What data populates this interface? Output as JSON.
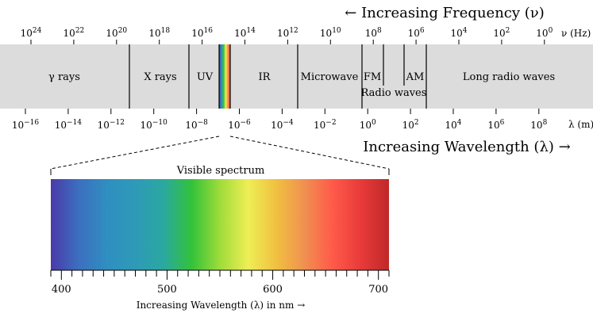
{
  "frequency_header": {
    "arrow": "←",
    "text": "Increasing Frequency (ν)"
  },
  "frequency_axis": {
    "unit": "ν (Hz)",
    "ticks": [
      {
        "base": "10",
        "exp": "24"
      },
      {
        "base": "10",
        "exp": "22"
      },
      {
        "base": "10",
        "exp": "20"
      },
      {
        "base": "10",
        "exp": "18"
      },
      {
        "base": "10",
        "exp": "16"
      },
      {
        "base": "10",
        "exp": "14"
      },
      {
        "base": "10",
        "exp": "12"
      },
      {
        "base": "10",
        "exp": "10"
      },
      {
        "base": "10",
        "exp": "8"
      },
      {
        "base": "10",
        "exp": "6"
      },
      {
        "base": "10",
        "exp": "4"
      },
      {
        "base": "10",
        "exp": "2"
      },
      {
        "base": "10",
        "exp": "0"
      }
    ]
  },
  "bands": {
    "gamma": "γ rays",
    "xray": "X rays",
    "uv": "UV",
    "ir": "IR",
    "microwave": "Microwave",
    "fm": "FM",
    "am": "AM",
    "radio": "Radio waves",
    "long_radio": "Long radio waves"
  },
  "wavelength_axis": {
    "unit": "λ (m)",
    "ticks": [
      {
        "base": "10",
        "exp": "−16"
      },
      {
        "base": "10",
        "exp": "−14"
      },
      {
        "base": "10",
        "exp": "−12"
      },
      {
        "base": "10",
        "exp": "−10"
      },
      {
        "base": "10",
        "exp": "−8"
      },
      {
        "base": "10",
        "exp": "−6"
      },
      {
        "base": "10",
        "exp": "−4"
      },
      {
        "base": "10",
        "exp": "−2"
      },
      {
        "base": "10",
        "exp": "0"
      },
      {
        "base": "10",
        "exp": "2"
      },
      {
        "base": "10",
        "exp": "4"
      },
      {
        "base": "10",
        "exp": "6"
      },
      {
        "base": "10",
        "exp": "8"
      }
    ]
  },
  "wavelength_header": {
    "text": "Increasing Wavelength (λ)",
    "arrow": "→"
  },
  "visible": {
    "title": "Visible spectrum",
    "ticks": [
      "400",
      "500",
      "600",
      "700"
    ],
    "axis_label": "Increasing Wavelength (λ) in nm →",
    "gradient": [
      "#4a3aa8",
      "#3c6fc0",
      "#2f8fc0",
      "#2e9ab8",
      "#2aa8a0",
      "#33c23a",
      "#9fdc3a",
      "#eeee55",
      "#f0c040",
      "#f09050",
      "#ff5a4a",
      "#e83a3a",
      "#c02828"
    ]
  }
}
